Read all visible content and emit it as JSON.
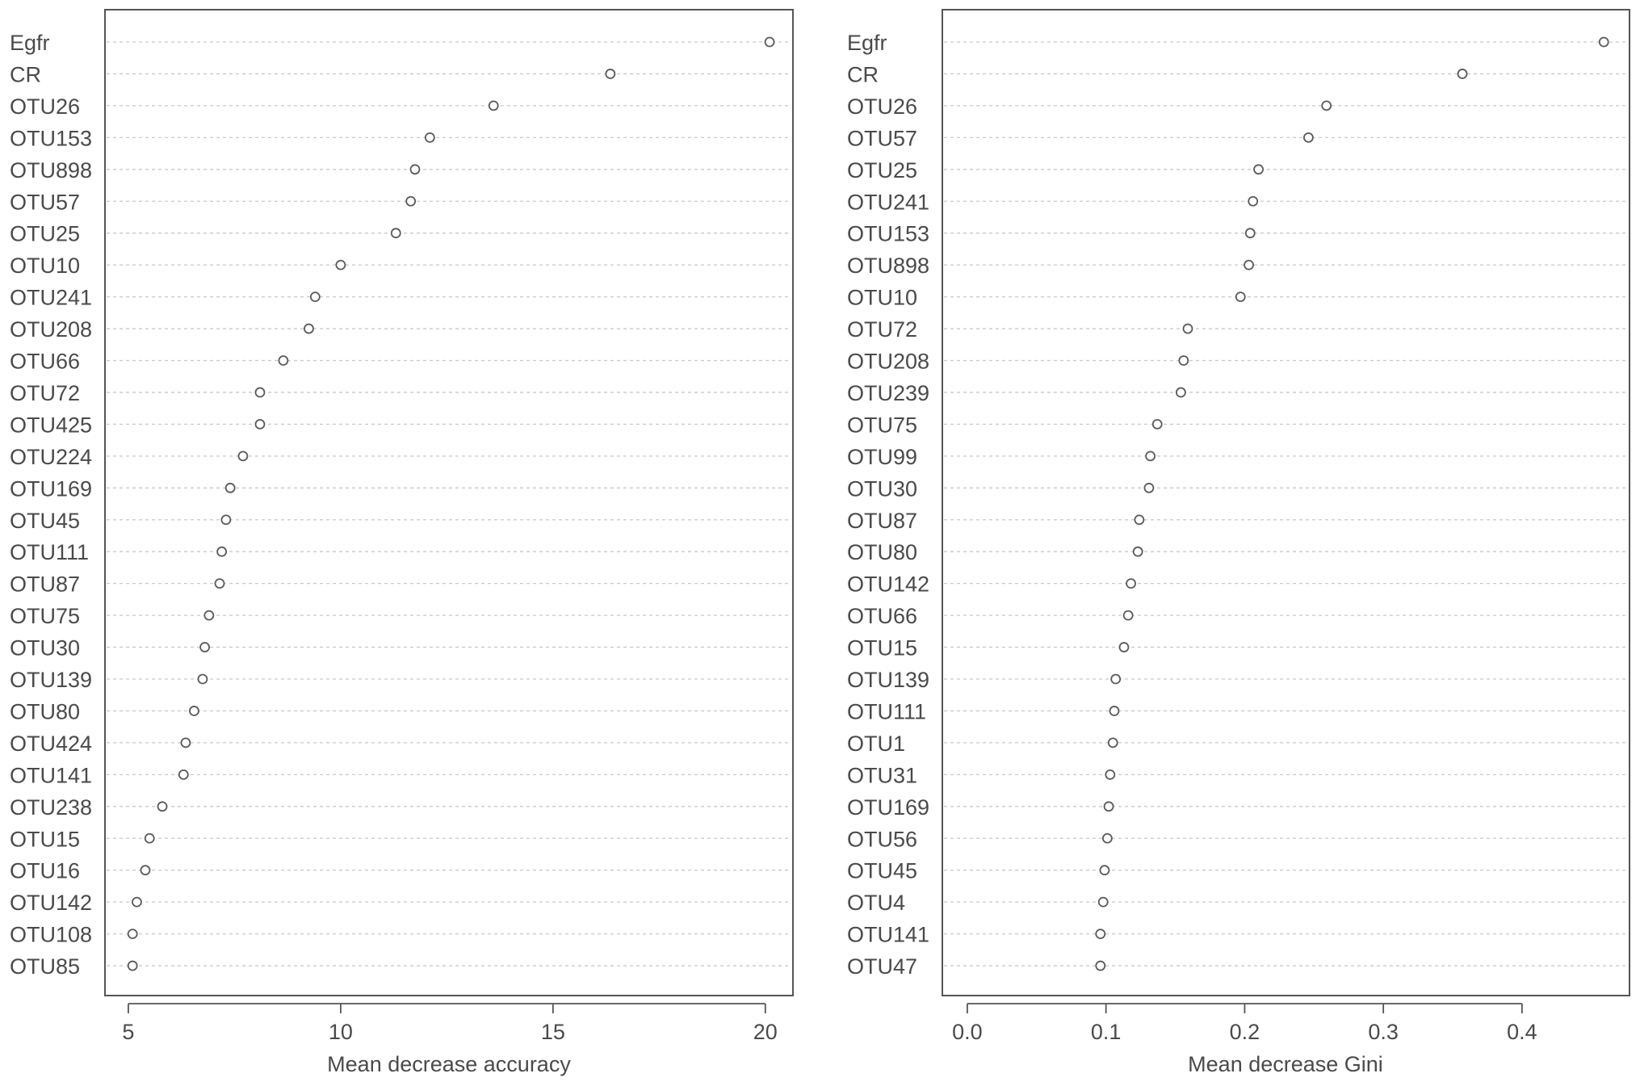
{
  "chart_data": [
    {
      "type": "dotchart",
      "xlabel": "Mean decrease accuracy",
      "xlim": [
        4.45,
        20.65
      ],
      "xticks": [
        5,
        10,
        15,
        20
      ],
      "xtick_labels": [
        "5",
        "10",
        "15",
        "20"
      ],
      "grid": "dashed horizontal guide per row",
      "categories": [
        "Egfr",
        "CR",
        "OTU26",
        "OTU153",
        "OTU898",
        "OTU57",
        "OTU25",
        "OTU10",
        "OTU241",
        "OTU208",
        "OTU66",
        "OTU72",
        "OTU425",
        "OTU224",
        "OTU169",
        "OTU45",
        "OTU111",
        "OTU87",
        "OTU75",
        "OTU30",
        "OTU139",
        "OTU80",
        "OTU424",
        "OTU141",
        "OTU238",
        "OTU15",
        "OTU16",
        "OTU142",
        "OTU108",
        "OTU85"
      ],
      "values": [
        20.1,
        16.35,
        13.6,
        12.1,
        11.75,
        11.65,
        11.3,
        10.0,
        9.4,
        9.25,
        8.65,
        8.1,
        8.1,
        7.7,
        7.4,
        7.3,
        7.2,
        7.15,
        6.9,
        6.8,
        6.75,
        6.55,
        6.35,
        6.3,
        5.8,
        5.5,
        5.4,
        5.2,
        5.1,
        5.1
      ]
    },
    {
      "type": "dotchart",
      "xlabel": "Mean decrease Gini",
      "xlim": [
        -0.018,
        0.4775
      ],
      "xticks": [
        0.0,
        0.1,
        0.2,
        0.3,
        0.4
      ],
      "xtick_labels": [
        "0.0",
        "0.1",
        "0.2",
        "0.3",
        "0.4"
      ],
      "grid": "dashed horizontal guide per row",
      "categories": [
        "Egfr",
        "CR",
        "OTU26",
        "OTU57",
        "OTU25",
        "OTU241",
        "OTU153",
        "OTU898",
        "OTU10",
        "OTU72",
        "OTU208",
        "OTU239",
        "OTU75",
        "OTU99",
        "OTU30",
        "OTU87",
        "OTU80",
        "OTU142",
        "OTU66",
        "OTU15",
        "OTU139",
        "OTU111",
        "OTU1",
        "OTU31",
        "OTU169",
        "OTU56",
        "OTU45",
        "OTU4",
        "OTU141",
        "OTU47"
      ],
      "values": [
        0.459,
        0.357,
        0.259,
        0.246,
        0.21,
        0.206,
        0.204,
        0.203,
        0.197,
        0.159,
        0.156,
        0.154,
        0.137,
        0.132,
        0.131,
        0.124,
        0.123,
        0.118,
        0.116,
        0.113,
        0.107,
        0.106,
        0.105,
        0.103,
        0.102,
        0.101,
        0.099,
        0.098,
        0.096,
        0.096
      ]
    }
  ],
  "colors": {
    "frame": "#555555",
    "guide": "#c9c9c9",
    "point_stroke": "#5a5a5a",
    "text": "#4a4a4a"
  }
}
